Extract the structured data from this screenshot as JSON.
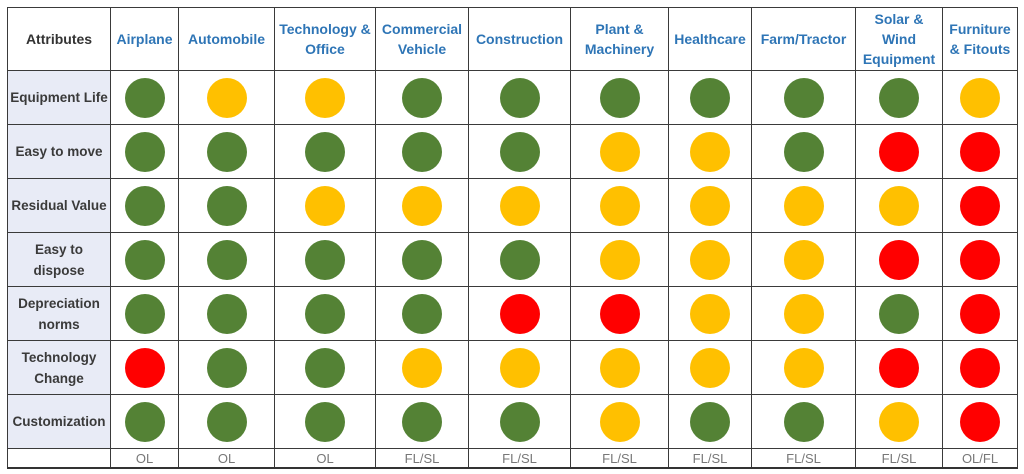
{
  "colors": {
    "G": "#548235",
    "Y": "#FFC000",
    "R": "#FF0000"
  },
  "header": "Attributes",
  "columns": [
    "Airplane",
    "Automobile",
    "Technology & Office",
    "Commercial Vehicle",
    "Construction",
    "Plant & Machinery",
    "Healthcare",
    "Farm/Tractor",
    "Solar & Wind Equipment",
    "Furniture & Fitouts"
  ],
  "rows": [
    {
      "label": "Equipment Life",
      "ratings": [
        "G",
        "Y",
        "Y",
        "G",
        "G",
        "G",
        "G",
        "G",
        "G",
        "Y"
      ]
    },
    {
      "label": "Easy to move",
      "ratings": [
        "G",
        "G",
        "G",
        "G",
        "G",
        "Y",
        "Y",
        "G",
        "R",
        "R"
      ]
    },
    {
      "label": "Residual Value",
      "ratings": [
        "G",
        "G",
        "Y",
        "Y",
        "Y",
        "Y",
        "Y",
        "Y",
        "Y",
        "R"
      ]
    },
    {
      "label": "Easy to dispose",
      "ratings": [
        "G",
        "G",
        "G",
        "G",
        "G",
        "Y",
        "Y",
        "Y",
        "R",
        "R"
      ]
    },
    {
      "label": "Depreciation norms",
      "ratings": [
        "G",
        "G",
        "G",
        "G",
        "R",
        "R",
        "Y",
        "Y",
        "G",
        "R"
      ]
    },
    {
      "label": "Technology Change",
      "ratings": [
        "R",
        "G",
        "G",
        "Y",
        "Y",
        "Y",
        "Y",
        "Y",
        "R",
        "R"
      ]
    },
    {
      "label": "Customization",
      "ratings": [
        "G",
        "G",
        "G",
        "G",
        "G",
        "Y",
        "G",
        "G",
        "Y",
        "R"
      ]
    }
  ],
  "footer": [
    "OL",
    "OL",
    "OL",
    "FL/SL",
    "FL/SL",
    "FL/SL",
    "FL/SL",
    "FL/SL",
    "FL/SL",
    "OL/FL"
  ]
}
